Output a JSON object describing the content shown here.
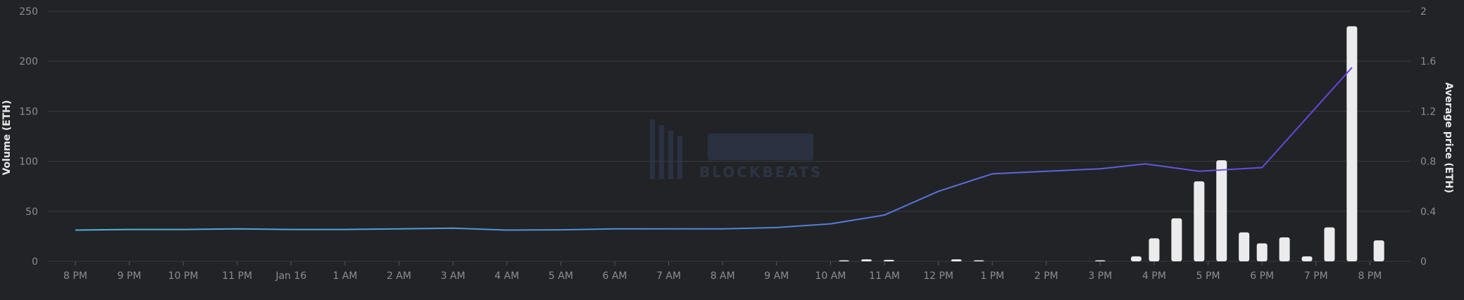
{
  "watermark": {
    "logo_text": "BLOCKBEATS"
  },
  "chart_data": {
    "type": "bar+line",
    "xlabel": "",
    "ylabel_left": "Volume (ETH)",
    "ylabel_right": "Average price (ETH)",
    "ylim_left": [
      0,
      250
    ],
    "ylim_right": [
      0,
      2
    ],
    "yticks_left": [
      "0",
      "50",
      "100",
      "150",
      "200",
      "250"
    ],
    "yticks_right": [
      "0",
      "0.4",
      "0.8",
      "1.2",
      "1.6",
      "2"
    ],
    "x_ticks": [
      "8 PM",
      "9 PM",
      "10 PM",
      "11 PM",
      "Jan 16",
      "1 AM",
      "2 AM",
      "3 AM",
      "4 AM",
      "5 AM",
      "6 AM",
      "7 AM",
      "8 AM",
      "9 AM",
      "10 AM",
      "11 AM",
      "12 PM",
      "1 PM",
      "2 PM",
      "3 PM",
      "4 PM",
      "5 PM",
      "6 PM",
      "7 PM",
      "8 PM"
    ],
    "grid": true,
    "legend": "none",
    "colors": {
      "bars": "#ebebee",
      "line_start": "#4fb3d9",
      "line_end": "#6a3ee0"
    },
    "volume_bars": [
      {
        "x": "10:15 AM",
        "value": 0.6
      },
      {
        "x": "10:40 AM",
        "value": 2
      },
      {
        "x": "11:05 AM",
        "value": 1.5
      },
      {
        "x": "12:20 PM",
        "value": 2
      },
      {
        "x": "12:45 PM",
        "value": 1
      },
      {
        "x": "3:00 PM",
        "value": 0.8
      },
      {
        "x": "3:40 PM",
        "value": 5
      },
      {
        "x": "4:00 PM",
        "value": 23
      },
      {
        "x": "4:25 PM",
        "value": 43
      },
      {
        "x": "4:50 PM",
        "value": 80
      },
      {
        "x": "5:15 PM",
        "value": 101
      },
      {
        "x": "5:40 PM",
        "value": 29
      },
      {
        "x": "6:00 PM",
        "value": 18
      },
      {
        "x": "6:25 PM",
        "value": 24
      },
      {
        "x": "6:50 PM",
        "value": 5
      },
      {
        "x": "7:15 PM",
        "value": 34
      },
      {
        "x": "7:40 PM",
        "value": 235
      },
      {
        "x": "8:10 PM",
        "value": 21
      }
    ],
    "average_price": [
      {
        "x": "8 PM",
        "value": 0.25
      },
      {
        "x": "9 PM",
        "value": 0.255
      },
      {
        "x": "10 PM",
        "value": 0.255
      },
      {
        "x": "11 PM",
        "value": 0.26
      },
      {
        "x": "Jan 16",
        "value": 0.255
      },
      {
        "x": "1 AM",
        "value": 0.255
      },
      {
        "x": "2 AM",
        "value": 0.26
      },
      {
        "x": "3 AM",
        "value": 0.265
      },
      {
        "x": "4 AM",
        "value": 0.25
      },
      {
        "x": "5 AM",
        "value": 0.252
      },
      {
        "x": "6 AM",
        "value": 0.26
      },
      {
        "x": "7 AM",
        "value": 0.26
      },
      {
        "x": "8 AM",
        "value": 0.26
      },
      {
        "x": "9 AM",
        "value": 0.27
      },
      {
        "x": "10 AM",
        "value": 0.3
      },
      {
        "x": "11 AM",
        "value": 0.37
      },
      {
        "x": "12 PM",
        "value": 0.56
      },
      {
        "x": "1 PM",
        "value": 0.7
      },
      {
        "x": "2 PM",
        "value": 0.72
      },
      {
        "x": "3 PM",
        "value": 0.74
      },
      {
        "x": "3:50 PM",
        "value": 0.78
      },
      {
        "x": "4:50 PM",
        "value": 0.72
      },
      {
        "x": "6 PM",
        "value": 0.75
      },
      {
        "x": "7:40 PM",
        "value": 1.55
      }
    ]
  }
}
